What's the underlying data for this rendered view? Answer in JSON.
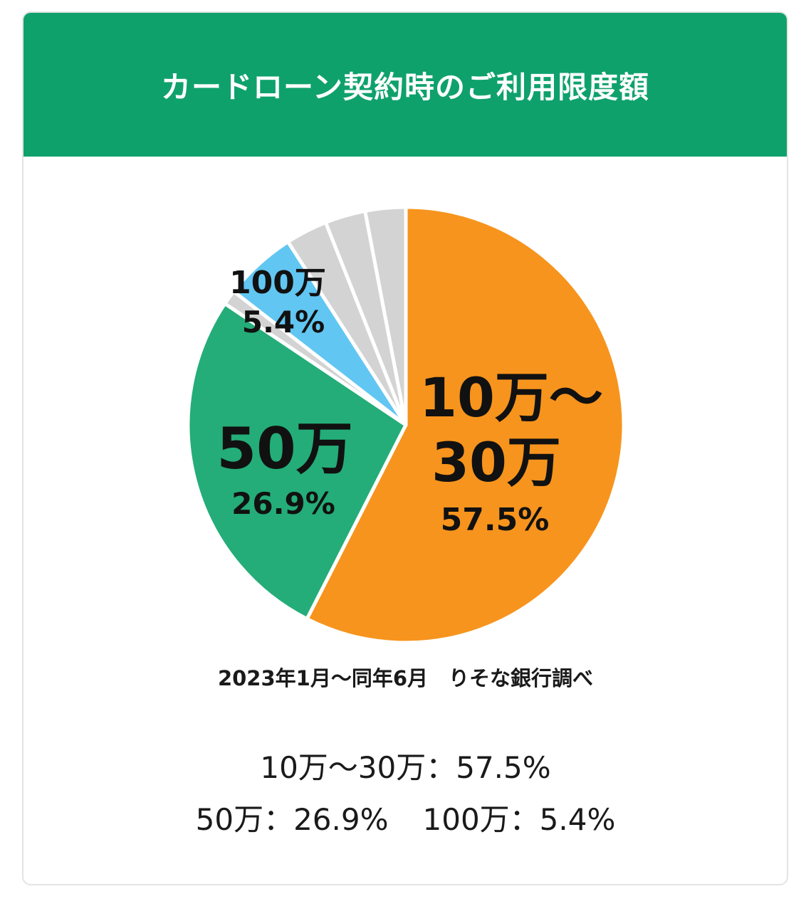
{
  "header": {
    "title": "カードローン契約時のご利用限度額"
  },
  "chart_data": {
    "type": "pie",
    "title": "カードローン契約時のご利用限度額",
    "slices": [
      {
        "label": "10万～30万",
        "value": 57.5,
        "display": "57.5%",
        "color": "#f7941d"
      },
      {
        "label": "50万",
        "value": 26.9,
        "display": "26.9%",
        "color": "#24ad78"
      },
      {
        "label": "",
        "value": 1.1,
        "display": "",
        "color": "#d3d3d3"
      },
      {
        "label": "100万",
        "value": 5.4,
        "display": "5.4%",
        "color": "#62c6f2"
      },
      {
        "label": "",
        "value": 3.1,
        "display": "",
        "color": "#d3d3d3"
      },
      {
        "label": "",
        "value": 3.0,
        "display": "",
        "color": "#d3d3d3"
      },
      {
        "label": "",
        "value": 3.0,
        "display": "",
        "color": "#d3d3d3"
      }
    ],
    "labels": {
      "large_1": "10万～",
      "large_2": "30万",
      "large_pct": "57.5%",
      "mid": "50万",
      "mid_pct": "26.9%",
      "small": "100万",
      "small_pct": "5.4%"
    },
    "source": "2023年1月～同年6月　りそな銀行調べ"
  },
  "summary": {
    "line1": "10万～30万：57.5%",
    "line2a": "50万：26.9%",
    "line2b": "100万：5.4%"
  }
}
